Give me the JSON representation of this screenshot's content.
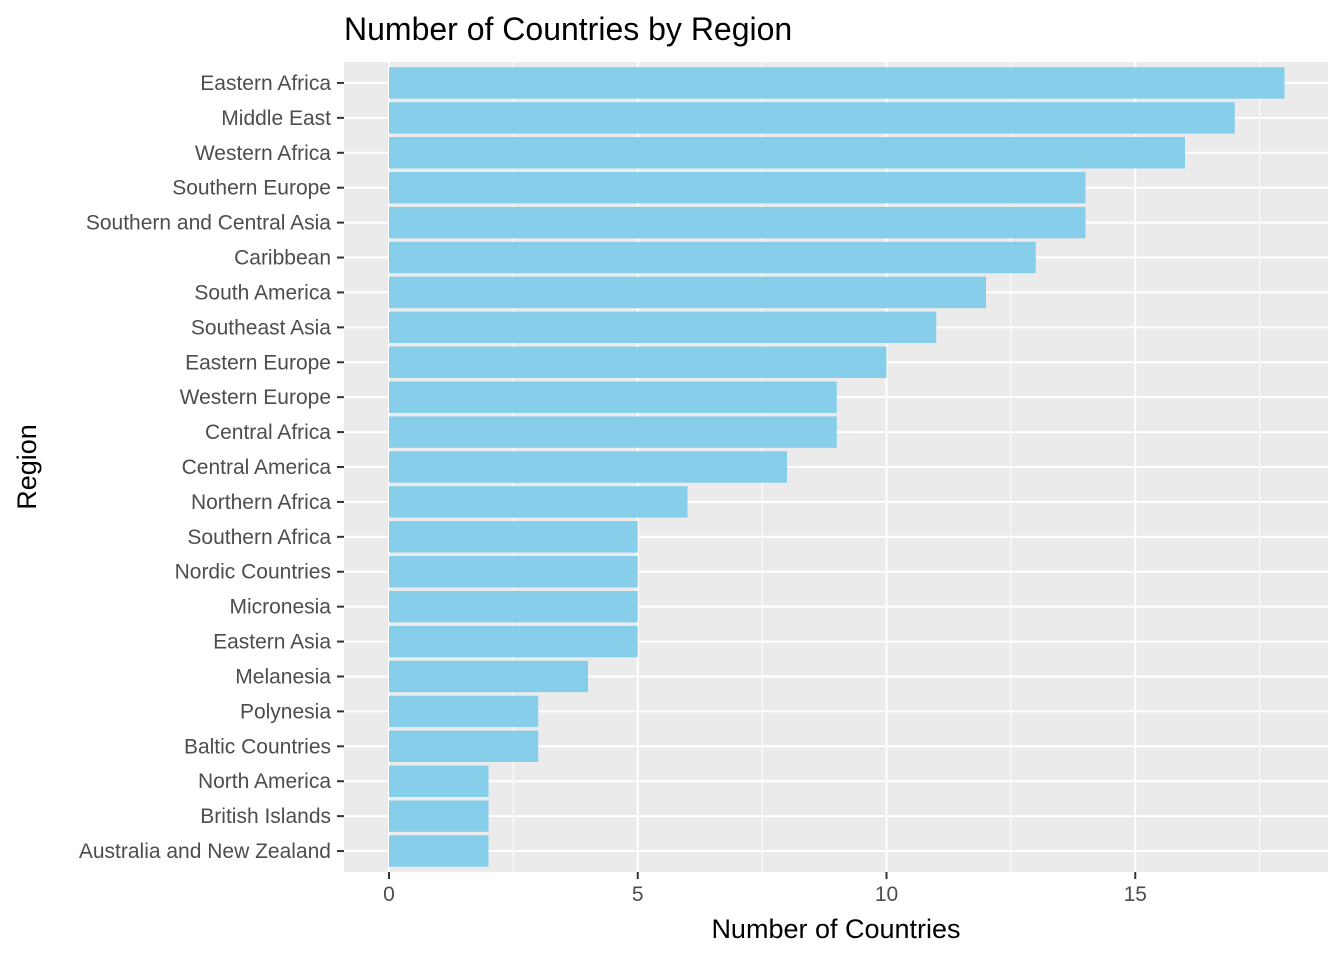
{
  "chart_data": {
    "type": "bar",
    "orientation": "horizontal",
    "title": "Number of Countries by Region",
    "xlabel": "Number of Countries",
    "ylabel": "Region",
    "categories": [
      "Eastern Africa",
      "Middle East",
      "Western Africa",
      "Southern Europe",
      "Southern and Central Asia",
      "Caribbean",
      "South America",
      "Southeast Asia",
      "Eastern Europe",
      "Western Europe",
      "Central Africa",
      "Central America",
      "Northern Africa",
      "Southern Africa",
      "Nordic Countries",
      "Micronesia",
      "Eastern Asia",
      "Melanesia",
      "Polynesia",
      "Baltic Countries",
      "North America",
      "British Islands",
      "Australia and New Zealand"
    ],
    "values": [
      18,
      17,
      16,
      14,
      14,
      13,
      12,
      11,
      10,
      9,
      9,
      8,
      6,
      5,
      5,
      5,
      5,
      4,
      3,
      3,
      2,
      2,
      2
    ],
    "xlim": [
      0,
      18.9
    ],
    "x_ticks": [
      0,
      5,
      10,
      15
    ],
    "grid": true,
    "colors": {
      "bar": "#87ceeb",
      "panel": "#ebebeb",
      "grid": "#ffffff",
      "tick_text": "#4d4d4d",
      "tick_mark": "#333333"
    }
  }
}
